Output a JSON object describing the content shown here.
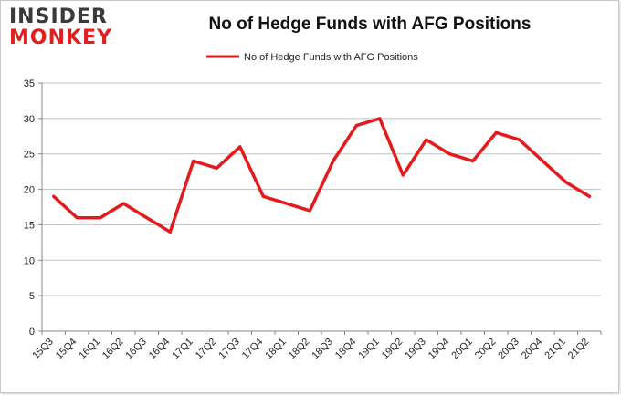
{
  "logo": {
    "line1": "INSIDER",
    "line2": "MONKEY"
  },
  "chart_data": {
    "type": "line",
    "title": "No of Hedge Funds with AFG Positions",
    "xlabel": "",
    "ylabel": "",
    "categories": [
      "15Q3",
      "15Q4",
      "16Q1",
      "16Q2",
      "16Q3",
      "16Q4",
      "17Q1",
      "17Q2",
      "17Q3",
      "17Q4",
      "18Q1",
      "18Q2",
      "18Q3",
      "18Q4",
      "19Q1",
      "19Q2",
      "19Q3",
      "19Q4",
      "20Q1",
      "20Q2",
      "20Q3",
      "20Q4",
      "21Q1",
      "21Q2"
    ],
    "series": [
      {
        "name": "No of Hedge Funds with AFG Positions",
        "color": "#e41a1c",
        "values": [
          19,
          16,
          16,
          18,
          16,
          14,
          24,
          23,
          26,
          19,
          18,
          17,
          24,
          29,
          30,
          22,
          27,
          25,
          24,
          28,
          27,
          24,
          21,
          19
        ]
      }
    ],
    "ylim": [
      0,
      35
    ],
    "yticks": [
      0,
      5,
      10,
      15,
      20,
      25,
      30,
      35
    ],
    "grid": true,
    "legend_position": "top-center"
  }
}
